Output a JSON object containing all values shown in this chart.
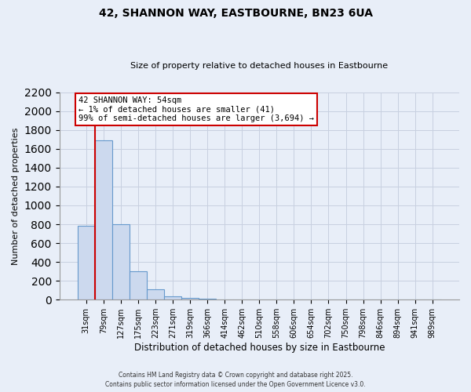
{
  "title": "42, SHANNON WAY, EASTBOURNE, BN23 6UA",
  "subtitle": "Size of property relative to detached houses in Eastbourne",
  "xlabel": "Distribution of detached houses by size in Eastbourne",
  "ylabel": "Number of detached properties",
  "bar_labels": [
    "31sqm",
    "79sqm",
    "127sqm",
    "175sqm",
    "223sqm",
    "271sqm",
    "319sqm",
    "366sqm",
    "414sqm",
    "462sqm",
    "510sqm",
    "558sqm",
    "606sqm",
    "654sqm",
    "702sqm",
    "750sqm",
    "798sqm",
    "846sqm",
    "894sqm",
    "941sqm",
    "989sqm"
  ],
  "bar_values": [
    780,
    1690,
    800,
    300,
    110,
    35,
    20,
    10,
    0,
    0,
    0,
    0,
    0,
    0,
    0,
    0,
    0,
    0,
    0,
    0,
    0
  ],
  "bar_color": "#ccd9ee",
  "bar_edge_color": "#6699cc",
  "annotation_text": "42 SHANNON WAY: 54sqm\n← 1% of detached houses are smaller (41)\n99% of semi-detached houses are larger (3,694) →",
  "annotation_box_color": "#ffffff",
  "annotation_box_edge_color": "#cc0000",
  "red_line_color": "#cc0000",
  "ylim": [
    0,
    2200
  ],
  "yticks": [
    0,
    200,
    400,
    600,
    800,
    1000,
    1200,
    1400,
    1600,
    1800,
    2000,
    2200
  ],
  "grid_color": "#c8d0e0",
  "background_color": "#e8eef8",
  "footer_line1": "Contains HM Land Registry data © Crown copyright and database right 2025.",
  "footer_line2": "Contains public sector information licensed under the Open Government Licence v3.0."
}
